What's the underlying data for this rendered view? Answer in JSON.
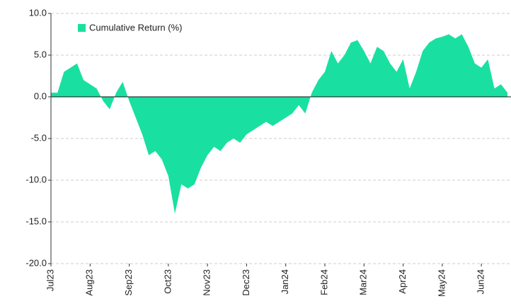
{
  "chart_data": {
    "type": "area",
    "categories": [
      "Jul23",
      null,
      null,
      null,
      null,
      null,
      "Aug23",
      null,
      null,
      null,
      null,
      null,
      "Sep23",
      null,
      null,
      null,
      null,
      null,
      "Oct23",
      null,
      null,
      null,
      null,
      null,
      "Nov23",
      null,
      null,
      null,
      null,
      null,
      "Dec23",
      null,
      null,
      null,
      null,
      null,
      "Jan24",
      null,
      null,
      null,
      null,
      null,
      "Feb24",
      null,
      null,
      null,
      null,
      null,
      "Mar24",
      null,
      null,
      null,
      null,
      null,
      "Apr24",
      null,
      null,
      null,
      null,
      null,
      "May24",
      null,
      null,
      null,
      null,
      null,
      "Jun24",
      null,
      null,
      null,
      null
    ],
    "series": [
      {
        "name": "Cumulative Return (%)",
        "color": "#19e0a0",
        "values": [
          0.5,
          0.5,
          3.0,
          3.5,
          4.0,
          2.0,
          1.5,
          1.0,
          -0.5,
          -1.5,
          0.5,
          1.8,
          -0.5,
          -2.5,
          -4.5,
          -7.0,
          -6.5,
          -7.5,
          -9.5,
          -14.0,
          -10.5,
          -11.0,
          -10.5,
          -8.5,
          -7.0,
          -6.0,
          -6.5,
          -5.5,
          -5.0,
          -5.5,
          -4.5,
          -4.0,
          -3.5,
          -3.0,
          -3.5,
          -3.0,
          -2.5,
          -2.0,
          -1.0,
          -2.0,
          0.5,
          2.0,
          3.0,
          5.5,
          4.0,
          5.0,
          6.5,
          6.8,
          5.5,
          4.0,
          6.0,
          5.5,
          4.0,
          3.0,
          4.5,
          1.0,
          3.0,
          5.5,
          6.5,
          7.0,
          7.2,
          7.5,
          7.0,
          7.5,
          6.0,
          4.0,
          3.5,
          4.5,
          1.0,
          1.5,
          0.5
        ]
      }
    ],
    "ylim": [
      -20,
      10
    ],
    "yticks": [
      {
        "value": -20,
        "label": "-20.0"
      },
      {
        "value": -15,
        "label": "-15.0"
      },
      {
        "value": -10,
        "label": "-10.0"
      },
      {
        "value": -5,
        "label": "-5.0"
      },
      {
        "value": 0,
        "label": "0.0"
      },
      {
        "value": 5,
        "label": "5.0"
      },
      {
        "value": 10,
        "label": "10.0"
      }
    ],
    "grid": true,
    "legend": "upper left"
  }
}
